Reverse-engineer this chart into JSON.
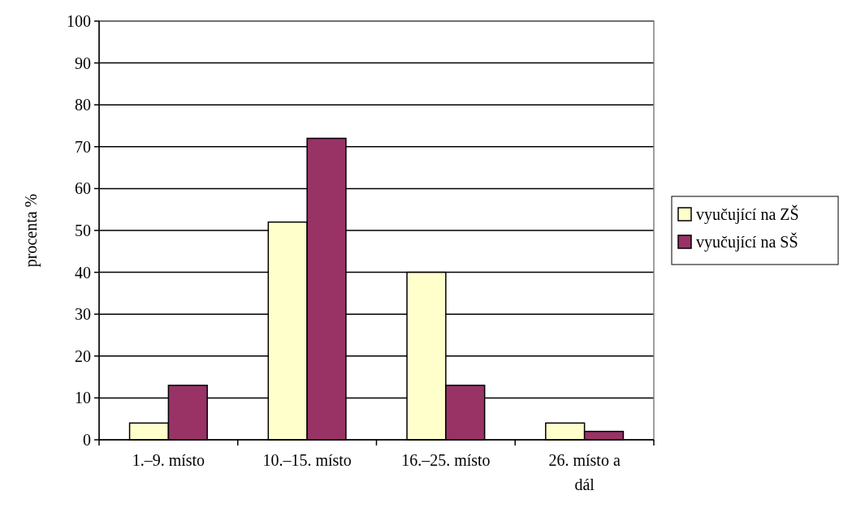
{
  "chart_data": {
    "type": "bar",
    "ylabel": "procenta %",
    "categories": [
      "1.–9. místo",
      "10.–15. místo",
      "16.–25. místo",
      "26. místo a dál"
    ],
    "series": [
      {
        "name": "vyučující na ZŠ",
        "color": "#ffffcc",
        "values": [
          4,
          52,
          40,
          4
        ]
      },
      {
        "name": "vyučující na SŠ",
        "color": "#993366",
        "values": [
          13,
          72,
          13,
          2
        ]
      }
    ],
    "ylim": [
      0,
      100
    ],
    "yticks": [
      0,
      10,
      20,
      30,
      40,
      50,
      60,
      70,
      80,
      90,
      100
    ],
    "grid": "y",
    "legend": "right"
  }
}
